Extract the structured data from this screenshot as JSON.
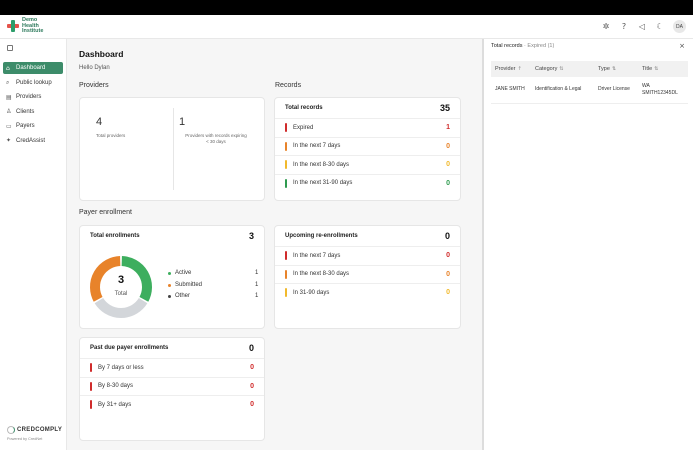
{
  "header": {
    "logo_lines": [
      "Demo",
      "Health",
      "Institute"
    ],
    "icons": [
      "sparkle-icon",
      "help-icon",
      "megaphone-icon",
      "moon-icon"
    ],
    "avatar_initials": "DA"
  },
  "sidebar": {
    "items": [
      {
        "label": "Dashboard",
        "icon": "home-icon",
        "active": true
      },
      {
        "label": "Public lookup",
        "icon": "search-icon"
      },
      {
        "label": "Providers",
        "icon": "list-icon"
      },
      {
        "label": "Clients",
        "icon": "user-icon"
      },
      {
        "label": "Payers",
        "icon": "wallet-icon"
      },
      {
        "label": "CredAssist",
        "icon": "sparkle-icon"
      }
    ],
    "brand_name": "CREDCOMPLY",
    "brand_sub": "Powered by CredNet"
  },
  "main": {
    "title": "Dashboard",
    "greeting": "Hello Dylan",
    "providers": {
      "section": "Providers",
      "total_count": "4",
      "total_label": "Total providers",
      "expiring_count": "1",
      "expiring_label": "Providers with records expiring < 30 days"
    },
    "records": {
      "section": "Records",
      "title": "Total records",
      "total": "35",
      "rows": [
        {
          "label": "Expired",
          "value": "1",
          "color": "#d02b2b"
        },
        {
          "label": "In the next 7 days",
          "value": "0",
          "color": "#e8832a"
        },
        {
          "label": "In the next 8-30 days",
          "value": "0",
          "color": "#f1b92c"
        },
        {
          "label": "In the next 31-90 days",
          "value": "0",
          "color": "#2f9b4f"
        }
      ]
    },
    "payer": {
      "section": "Payer enrollment",
      "total_title": "Total enrollments",
      "total": "3",
      "donut_value": "3",
      "donut_label": "Total",
      "legend": [
        {
          "label": "Active",
          "value": "1",
          "color": "#3dae5e"
        },
        {
          "label": "Submitted",
          "value": "1",
          "color": "#e8832a"
        },
        {
          "label": "Other",
          "value": "1",
          "color": "#444444"
        }
      ],
      "donut_segments": [
        {
          "name": "Active",
          "value": 1,
          "color": "#3dae5e"
        },
        {
          "name": "Other",
          "value": 1,
          "color": "#d3d6da"
        },
        {
          "name": "Submitted",
          "value": 1,
          "color": "#e8832a"
        }
      ]
    },
    "reenroll": {
      "title": "Upcoming re-enrollments",
      "total": "0",
      "rows": [
        {
          "label": "In the next 7 days",
          "value": "0",
          "color": "#d02b2b"
        },
        {
          "label": "In the next 8-30 days",
          "value": "0",
          "color": "#e8832a"
        },
        {
          "label": "In 31-90 days",
          "value": "0",
          "color": "#f1b92c"
        }
      ]
    },
    "pastdue": {
      "title": "Past due payer enrollments",
      "total": "0",
      "rows": [
        {
          "label": "By 7 days or less",
          "value": "0",
          "color": "#d02b2b"
        },
        {
          "label": "By 8-30 days",
          "value": "0",
          "color": "#d02b2b"
        },
        {
          "label": "By 31+ days",
          "value": "0",
          "color": "#d02b2b"
        }
      ]
    }
  },
  "panel": {
    "title": "Total records",
    "separator": "·",
    "subtitle": "Expired (1)",
    "columns": [
      {
        "label": "Provider",
        "sort": "↑"
      },
      {
        "label": "Category",
        "sort": "⇅"
      },
      {
        "label": "Type",
        "sort": "⇅"
      },
      {
        "label": "Title",
        "sort": "⇅"
      }
    ],
    "rows": [
      {
        "provider": "JANE SMITH",
        "category": "Identification & Legal",
        "type": "Driver License",
        "title_l1": "WA",
        "title_l2": "SMITH12345DL"
      }
    ]
  }
}
